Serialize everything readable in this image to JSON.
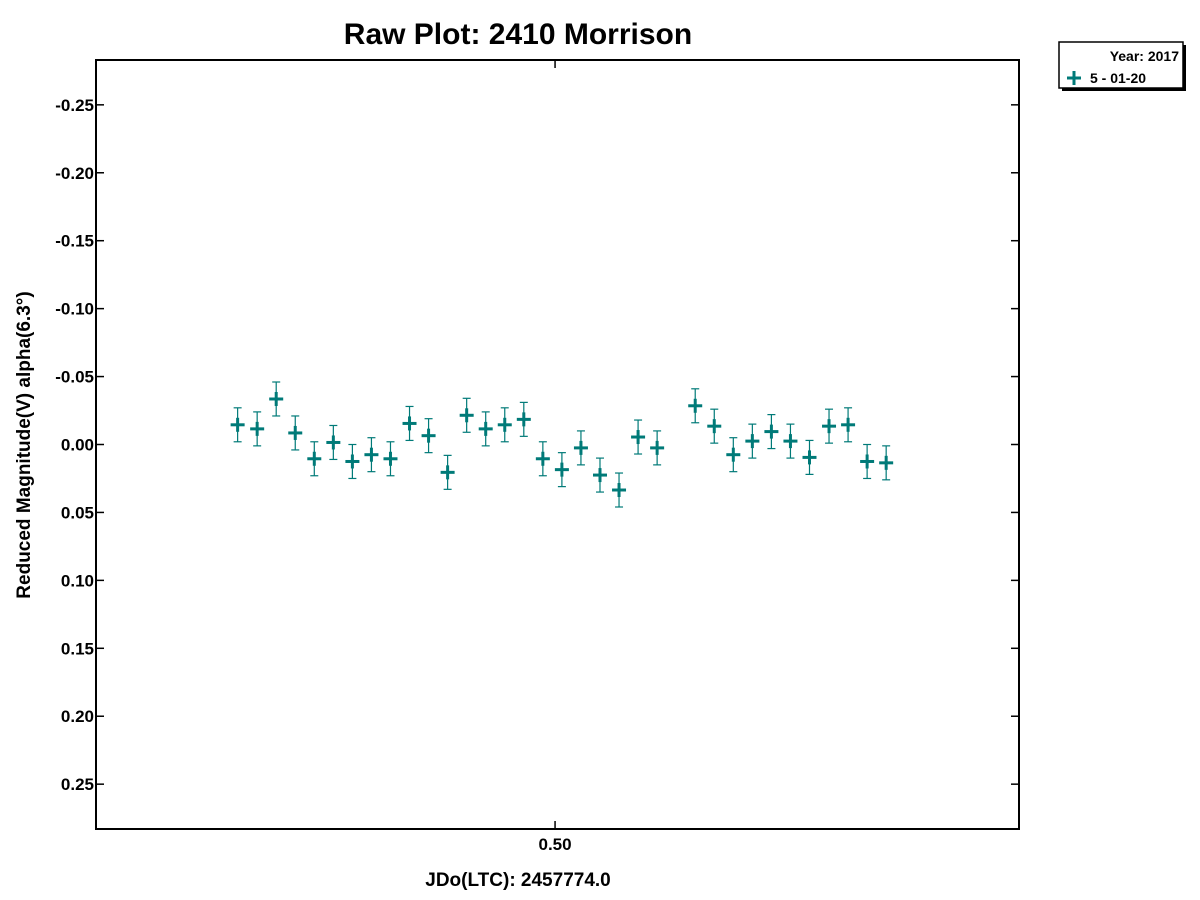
{
  "chart_data": {
    "type": "scatter",
    "title": "Raw Plot: 2410 Morrison",
    "xlabel": "JDo(LTC): 2457774.0",
    "ylabel": "Reduced Magnitude(V) alpha(6.3°)",
    "xlim": [
      0.406,
      0.595
    ],
    "ylim": [
      0.283,
      -0.283
    ],
    "y_inverted": true,
    "grid": false,
    "x_ticks": [
      {
        "value": 0.5,
        "label": "0.50"
      }
    ],
    "y_ticks": [
      {
        "value": -0.25,
        "label": "-0.25"
      },
      {
        "value": -0.2,
        "label": "-0.20"
      },
      {
        "value": -0.15,
        "label": "-0.15"
      },
      {
        "value": -0.1,
        "label": "-0.10"
      },
      {
        "value": -0.05,
        "label": "-0.05"
      },
      {
        "value": 0.0,
        "label": "0.00"
      },
      {
        "value": 0.05,
        "label": "0.05"
      },
      {
        "value": 0.1,
        "label": "0.10"
      },
      {
        "value": 0.15,
        "label": "0.15"
      },
      {
        "value": 0.2,
        "label": "0.20"
      },
      {
        "value": 0.25,
        "label": "0.25"
      }
    ],
    "legend": {
      "placement": "top-right outside",
      "header": "Year: 2017",
      "entries": [
        {
          "label": "5 - 01-20",
          "color": "#007a78",
          "marker": "plus"
        }
      ]
    },
    "series": [
      {
        "name": "5 - 01-20",
        "color": "#007a78",
        "marker": "plus",
        "error": 0.0125,
        "x": [
          0.435,
          0.439,
          0.4429,
          0.4468,
          0.4507,
          0.4546,
          0.4585,
          0.4624,
          0.4663,
          0.4702,
          0.4741,
          0.478,
          0.4819,
          0.4858,
          0.4897,
          0.4936,
          0.4975,
          0.5014,
          0.5053,
          0.5092,
          0.5131,
          0.517,
          0.5209,
          0.5287,
          0.5326,
          0.5365,
          0.5404,
          0.5443,
          0.5482,
          0.5521,
          0.5561,
          0.56,
          0.5639,
          0.5678
        ],
        "y": [
          -0.0145,
          -0.0115,
          -0.0335,
          -0.0085,
          0.0105,
          -0.0015,
          0.0125,
          0.0075,
          0.0105,
          -0.0155,
          -0.0065,
          0.0205,
          -0.0215,
          -0.0115,
          -0.0145,
          -0.0185,
          0.0105,
          0.0185,
          0.0025,
          0.0225,
          0.0335,
          -0.0055,
          0.0025,
          -0.0285,
          -0.0135,
          0.0075,
          -0.0025,
          -0.0095,
          -0.0025,
          0.0095,
          -0.0135,
          -0.0145,
          0.0125,
          0.0135
        ]
      }
    ]
  },
  "colors": {
    "series": "#007a78",
    "axes": "#000000",
    "background": "#ffffff"
  }
}
